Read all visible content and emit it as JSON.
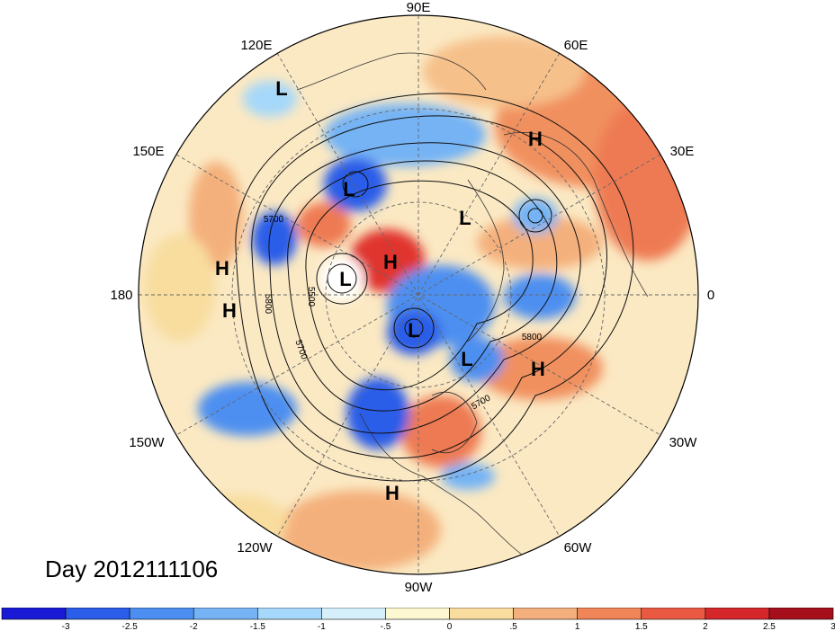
{
  "map": {
    "longitude_labels": [
      "90E",
      "120E",
      "60E",
      "150E",
      "30E",
      "180",
      "0",
      "150W",
      "30W",
      "120W",
      "60W",
      "90W"
    ],
    "pressure_systems": [
      {
        "type": "L"
      },
      {
        "type": "H"
      },
      {
        "type": "L"
      },
      {
        "type": "L"
      },
      {
        "type": "H"
      },
      {
        "type": "H"
      },
      {
        "type": "L"
      },
      {
        "type": "H"
      },
      {
        "type": "L"
      },
      {
        "type": "L"
      },
      {
        "type": "H"
      },
      {
        "type": "H"
      }
    ],
    "contour_labels": [
      "5700",
      "5800",
      "5500",
      "5700",
      "5800",
      "5700"
    ],
    "day_label": "Day 2012111106"
  },
  "colorbar": {
    "ticks": [
      "-3",
      "-2.5",
      "-2",
      "-1.5",
      "-1",
      "-.5",
      "0",
      ".5",
      "1",
      "1.5",
      "2",
      "2.5",
      "3"
    ],
    "colors": [
      "#1a1ad6",
      "#2a5de8",
      "#4d8ff0",
      "#75b3f5",
      "#a5d8fa",
      "#d6f0fb",
      "#fdf8d2",
      "#f8dd9f",
      "#f4b07c",
      "#f08558",
      "#ea5a42",
      "#d4262b",
      "#a50f1c"
    ]
  }
}
